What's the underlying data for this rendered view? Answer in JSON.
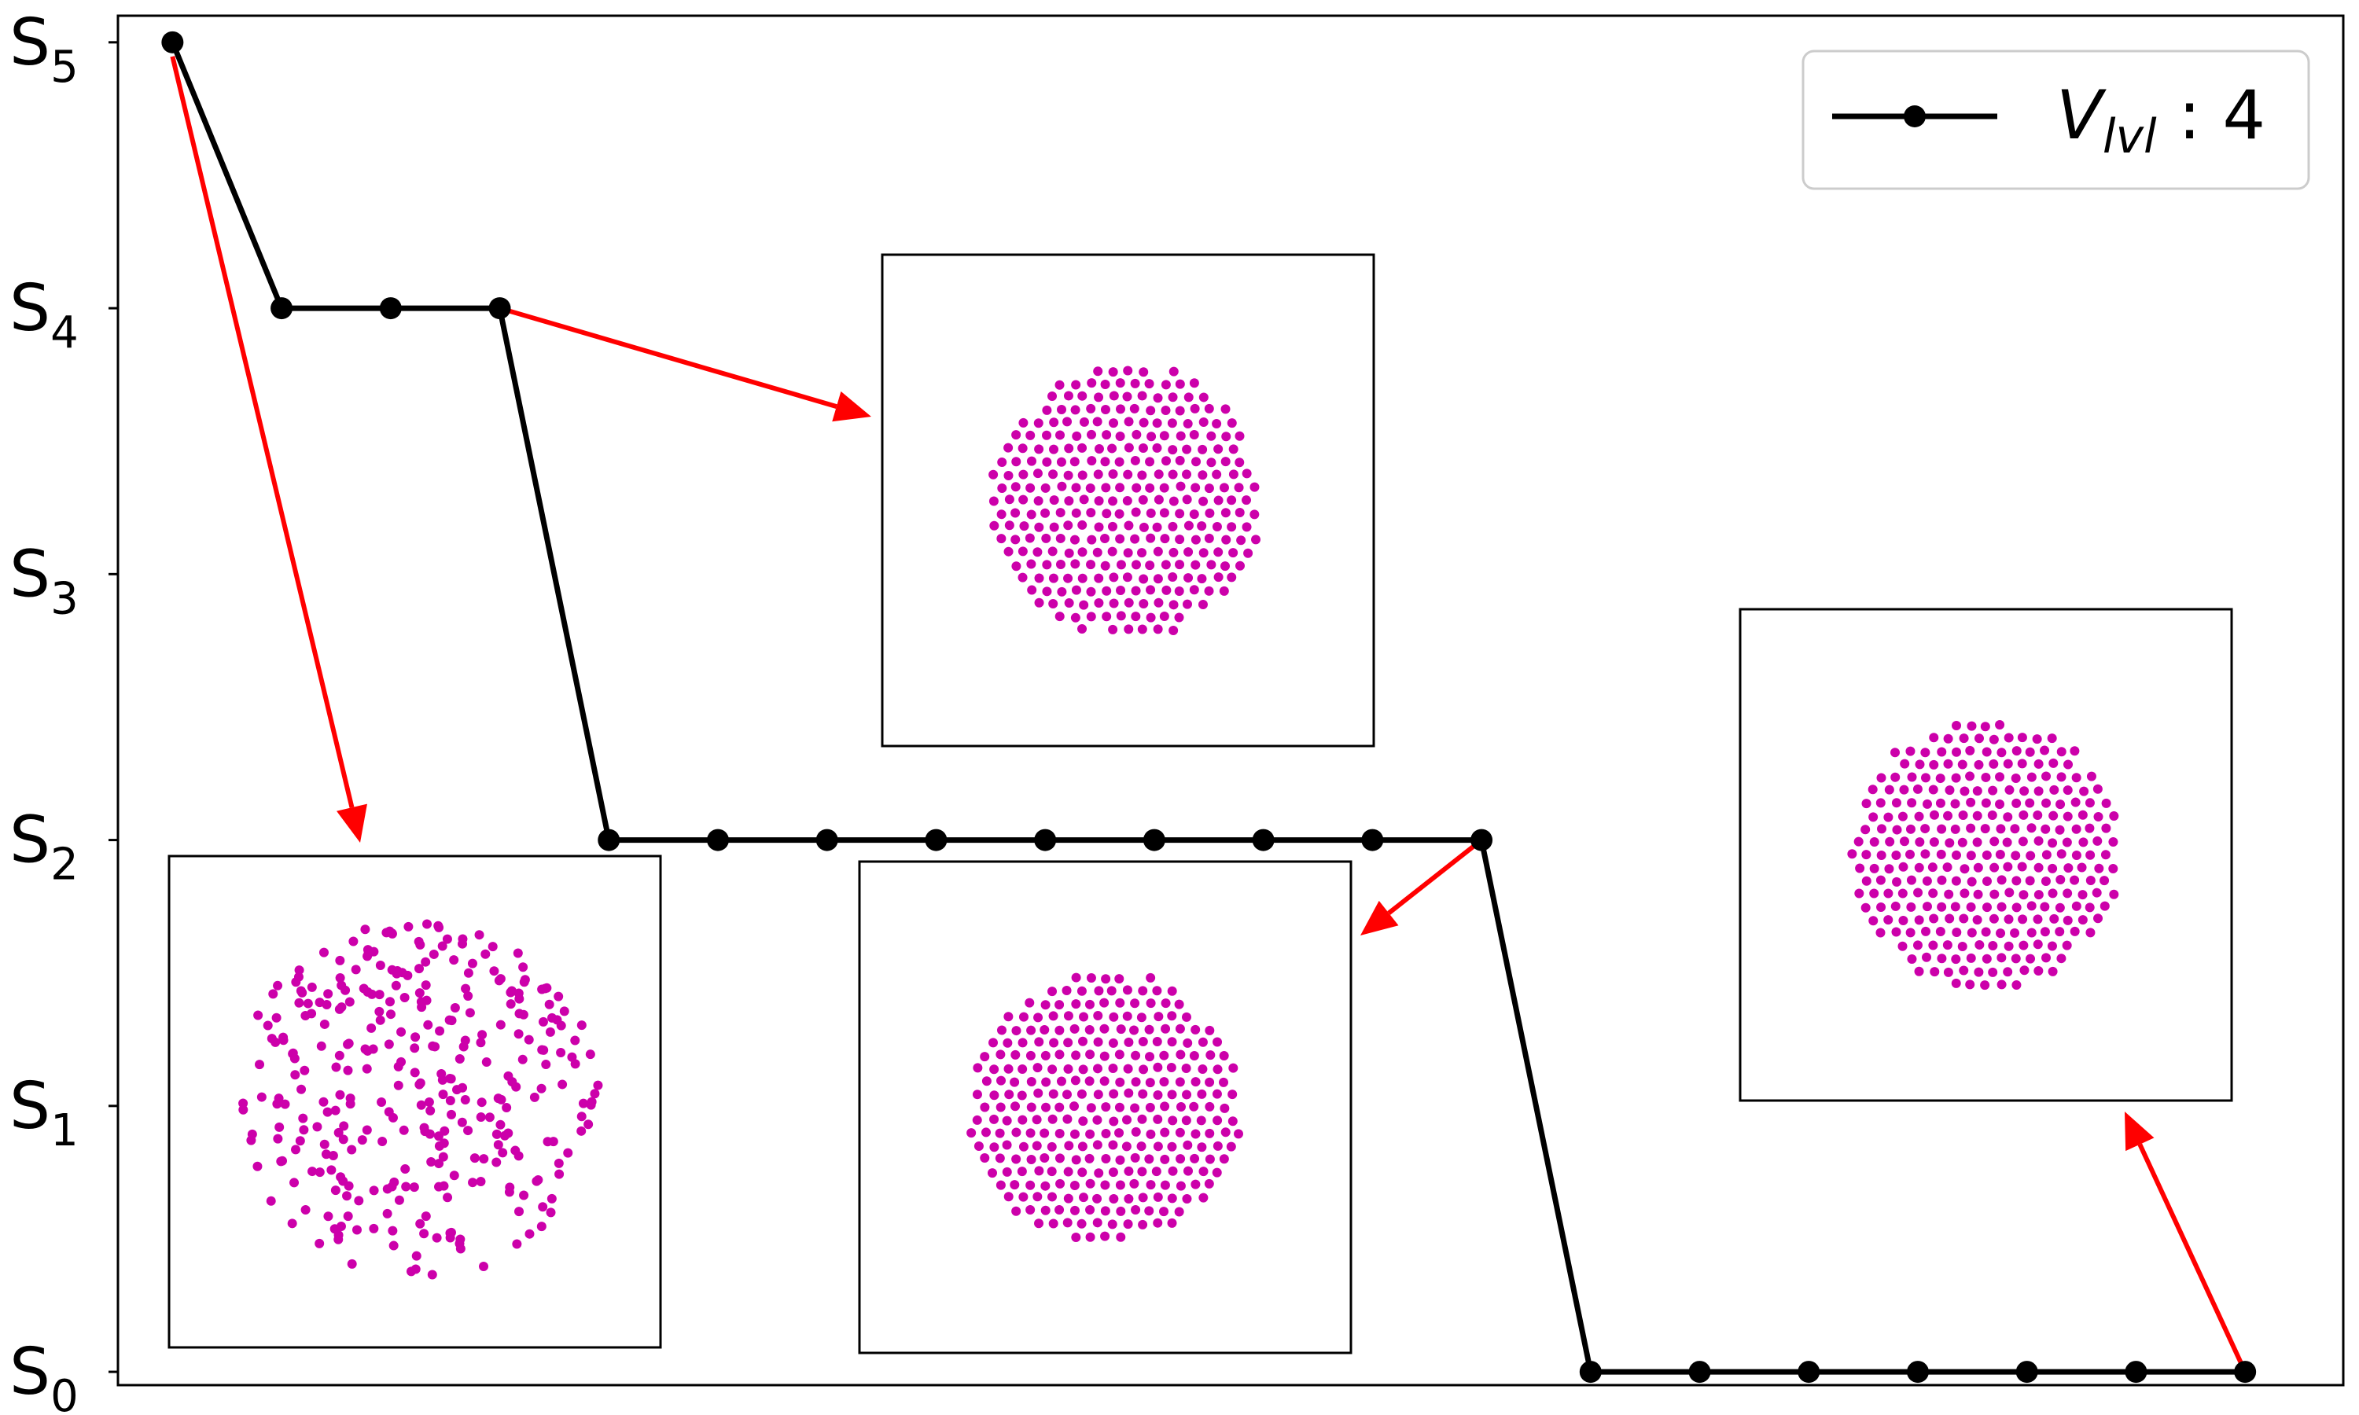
{
  "chart_data": {
    "type": "line",
    "x": [
      0,
      1,
      2,
      3,
      4,
      5,
      6,
      7,
      8,
      9,
      10,
      11,
      12,
      13,
      14,
      15,
      16,
      17,
      18,
      19
    ],
    "series": [
      {
        "name_base": "V",
        "name_sub": "lvl",
        "name_suffix": " : 4",
        "values": [
          5,
          4,
          4,
          4,
          2,
          2,
          2,
          2,
          2,
          2,
          2,
          2,
          2,
          0,
          0,
          0,
          0,
          0,
          0,
          0
        ],
        "color": "#000000"
      }
    ],
    "y_ticks": [
      {
        "value": 5,
        "base": "S",
        "sub": "5"
      },
      {
        "value": 4,
        "base": "S",
        "sub": "4"
      },
      {
        "value": 3,
        "base": "S",
        "sub": "3"
      },
      {
        "value": 2,
        "base": "S",
        "sub": "2"
      },
      {
        "value": 1,
        "base": "S",
        "sub": "1"
      },
      {
        "value": 0,
        "base": "S",
        "sub": "0"
      }
    ],
    "ylim": [
      -0.05,
      5.1
    ],
    "xlim": [
      -0.5,
      19.9
    ],
    "grid": false,
    "legend_position": "top-right",
    "annotation_color": "#ff0000",
    "particle_color": "#cc00aa",
    "insets": [
      {
        "state": 5,
        "arrow_from_x": 0,
        "arrow_from_y": 5,
        "pattern": "scattered"
      },
      {
        "state": 4,
        "arrow_from_x": 3,
        "arrow_from_y": 4,
        "pattern": "hexagonal"
      },
      {
        "state": 2,
        "arrow_from_x": 12,
        "arrow_from_y": 2,
        "pattern": "hexagonal"
      },
      {
        "state": 0,
        "arrow_from_x": 19,
        "arrow_from_y": 0,
        "pattern": "hexagonal"
      }
    ]
  }
}
